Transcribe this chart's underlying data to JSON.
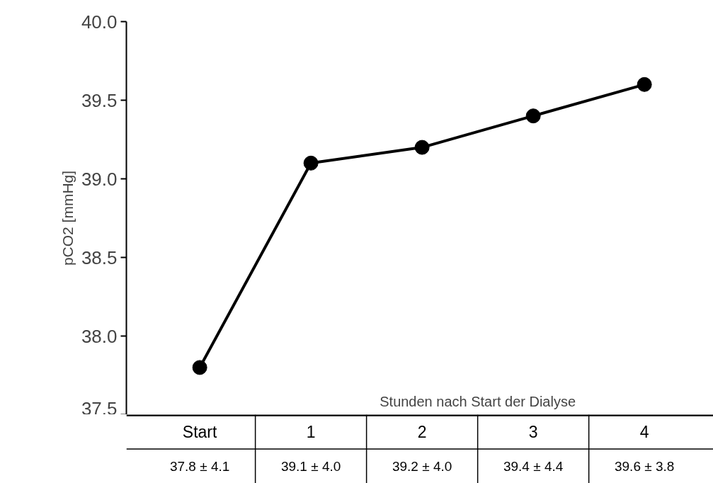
{
  "chart_data": {
    "type": "line",
    "ylabel": "pCO2 [mmHg]",
    "xlabel": "Stunden nach Start der Dialyse",
    "categories": [
      "Start",
      "1",
      "2",
      "3",
      "4"
    ],
    "series": [
      {
        "color": "#000000",
        "values": [
          37.8,
          39.1,
          39.2,
          39.4,
          39.6
        ],
        "value_labels": [
          "37.8 ± 4.1",
          "39.1 ± 4.0",
          "39.2 ± 4.0",
          "39.4 ± 4.4",
          "39.6 ± 3.8"
        ]
      }
    ],
    "ylim": [
      37.5,
      40.0
    ],
    "yticks": [
      {
        "value": 37.5,
        "label": "37.5"
      },
      {
        "value": 38.0,
        "label": "38.0"
      },
      {
        "value": 38.5,
        "label": "38.5"
      },
      {
        "value": 39.0,
        "label": "39.0"
      },
      {
        "value": 39.5,
        "label": "39.5"
      },
      {
        "value": 40.0,
        "label": "40.0"
      }
    ],
    "marker": "circle",
    "line_style": "solid"
  }
}
